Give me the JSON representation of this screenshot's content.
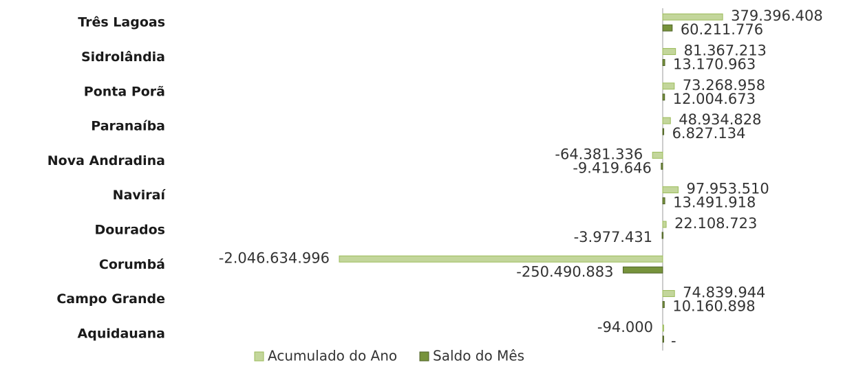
{
  "chart_data": {
    "type": "barh",
    "categories": [
      "Três Lagoas",
      "Sidrolândia",
      "Ponta Porã",
      "Paranaíba",
      "Nova Andradina",
      "Naviraí ",
      "Dourados",
      "Corumbá",
      "Campo Grande",
      "Aquidauana"
    ],
    "series": [
      {
        "name": "Acumulado do Ano",
        "color": "#c3d69b",
        "values": [
          379396408,
          81367213,
          73268958,
          48934828,
          -64381336,
          97953510,
          22108723,
          -2046634996,
          74839944,
          -94000
        ],
        "value_labels": [
          "379.396.408",
          "81.367.213",
          "73.268.958",
          "48.934.828",
          "-64.381.336",
          "97.953.510",
          "22.108.723",
          "-2.046.634.996",
          "74.839.944",
          "-94.000"
        ]
      },
      {
        "name": "Saldo do Mês",
        "color": "#77933c",
        "values": [
          60211776,
          13170963,
          12004673,
          6827134,
          -9419646,
          13491918,
          -3977431,
          -250490883,
          10160898,
          0
        ],
        "value_labels": [
          "60.211.776",
          "13.170.963",
          "12.004.673",
          "6.827.134",
          "-9.419.646",
          "13.491.918",
          "-3.977.431",
          "-250.490.883",
          "10.160.898",
          "-"
        ]
      }
    ],
    "legend": "bottom"
  }
}
